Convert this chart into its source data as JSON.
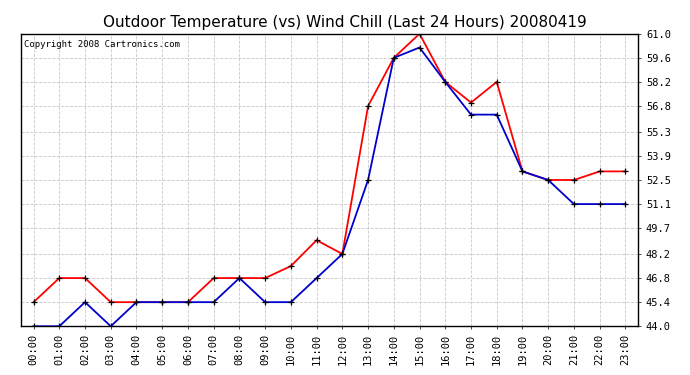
{
  "title": "Outdoor Temperature (vs) Wind Chill (Last 24 Hours) 20080419",
  "copyright": "Copyright 2008 Cartronics.com",
  "x_labels": [
    "00:00",
    "01:00",
    "02:00",
    "03:00",
    "04:00",
    "05:00",
    "06:00",
    "07:00",
    "08:00",
    "09:00",
    "10:00",
    "11:00",
    "12:00",
    "13:00",
    "14:00",
    "15:00",
    "16:00",
    "17:00",
    "18:00",
    "19:00",
    "20:00",
    "21:00",
    "22:00",
    "23:00"
  ],
  "temp_red": [
    45.4,
    46.8,
    46.8,
    45.4,
    45.4,
    45.4,
    45.4,
    46.8,
    46.8,
    46.8,
    47.5,
    49.0,
    48.2,
    56.8,
    59.6,
    61.0,
    58.2,
    57.0,
    58.2,
    53.0,
    52.5,
    52.5,
    53.0,
    53.0
  ],
  "wind_blue": [
    44.0,
    44.0,
    45.4,
    44.0,
    45.4,
    45.4,
    45.4,
    45.4,
    46.8,
    45.4,
    45.4,
    46.8,
    48.2,
    52.5,
    59.6,
    60.2,
    58.2,
    56.3,
    56.3,
    53.0,
    52.5,
    51.1,
    51.1,
    51.1
  ],
  "ylim": [
    44.0,
    61.0
  ],
  "yticks": [
    44.0,
    45.4,
    46.8,
    48.2,
    49.7,
    51.1,
    52.5,
    53.9,
    55.3,
    56.8,
    58.2,
    59.6,
    61.0
  ],
  "red_color": "#ff0000",
  "blue_color": "#0000cc",
  "grid_color": "#bbbbbb",
  "bg_color": "#ffffff",
  "title_fontsize": 11,
  "copyright_fontsize": 6.5,
  "tick_fontsize": 7.5
}
